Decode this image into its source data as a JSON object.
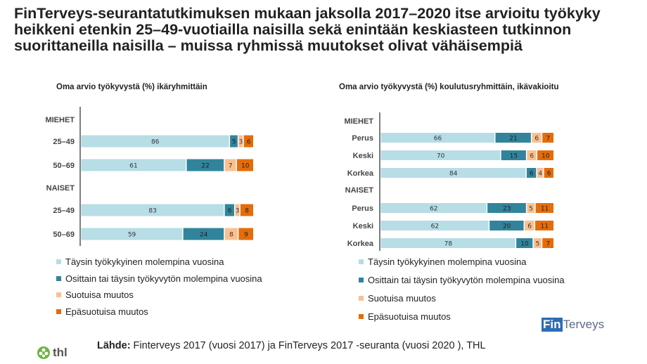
{
  "title": "FinTerveys-seurantatutkimuksen mukaan jaksolla 2017–2020 itse arvioitu työkyky heikkeni etenkin 25–49-vuotiailla naisilla sekä enintään keskiasteen tutkinnon suorittaneilla naisilla – muissa ryhmissä muutokset olivat vähäisempiä",
  "colors": {
    "taysin": "#b7dde6",
    "osittain": "#31849b",
    "suotuisa": "#fac090",
    "epasuotuisa": "#e46c0a"
  },
  "chart_data": [
    {
      "type": "bar",
      "orientation": "horizontal-stacked-100",
      "title": "Oma arvio työkyvystä (%) ikäryhmittäin",
      "groups": [
        {
          "label": "MIEHET",
          "categories": [
            "25–49",
            "50–69"
          ]
        },
        {
          "label": "NAISET",
          "categories": [
            "25–49",
            "50–69"
          ]
        }
      ],
      "series": [
        {
          "name": "Täysin työkykyinen molempina vuosina",
          "values": [
            86,
            61,
            83,
            59
          ]
        },
        {
          "name": "Osittain tai täysin työkyvytön molempina vuosina",
          "values": [
            5,
            22,
            6,
            24
          ]
        },
        {
          "name": "Suotuisa muutos",
          "values": [
            3,
            7,
            3,
            8
          ]
        },
        {
          "name": "Epäsuotuisa muutos",
          "values": [
            6,
            10,
            8,
            9
          ]
        }
      ],
      "legend": "bottom"
    },
    {
      "type": "bar",
      "orientation": "horizontal-stacked-100",
      "title": "Oma arvio työkyvystä (%) koulutusryhmittäin, ikävakioitu",
      "groups": [
        {
          "label": "MIEHET",
          "categories": [
            "Perus",
            "Keski",
            "Korkea"
          ]
        },
        {
          "label": "NAISET",
          "categories": [
            "Perus",
            "Keski",
            "Korkea"
          ]
        }
      ],
      "series": [
        {
          "name": "Täysin työkykyinen molempina vuosina",
          "values": [
            66,
            70,
            84,
            62,
            62,
            78
          ]
        },
        {
          "name": "Osittain tai täysin työkyvytön molempina vuosina",
          "values": [
            21,
            15,
            6,
            23,
            20,
            10
          ]
        },
        {
          "name": "Suotuisa muutos",
          "values": [
            6,
            6,
            4,
            5,
            6,
            5
          ]
        },
        {
          "name": "Epäsuotuisa muutos",
          "values": [
            7,
            10,
            6,
            11,
            11,
            7
          ]
        }
      ],
      "legend": "bottom"
    }
  ],
  "source": {
    "label": "Lähde:",
    "text": " Finterveys 2017 (vuosi 2017) ja FinTerveys 2017 -seuranta (vuosi 2020 ), THL"
  },
  "logos": {
    "thl": "thl",
    "finterveys_a": "Fin",
    "finterveys_b": "Terveys"
  }
}
